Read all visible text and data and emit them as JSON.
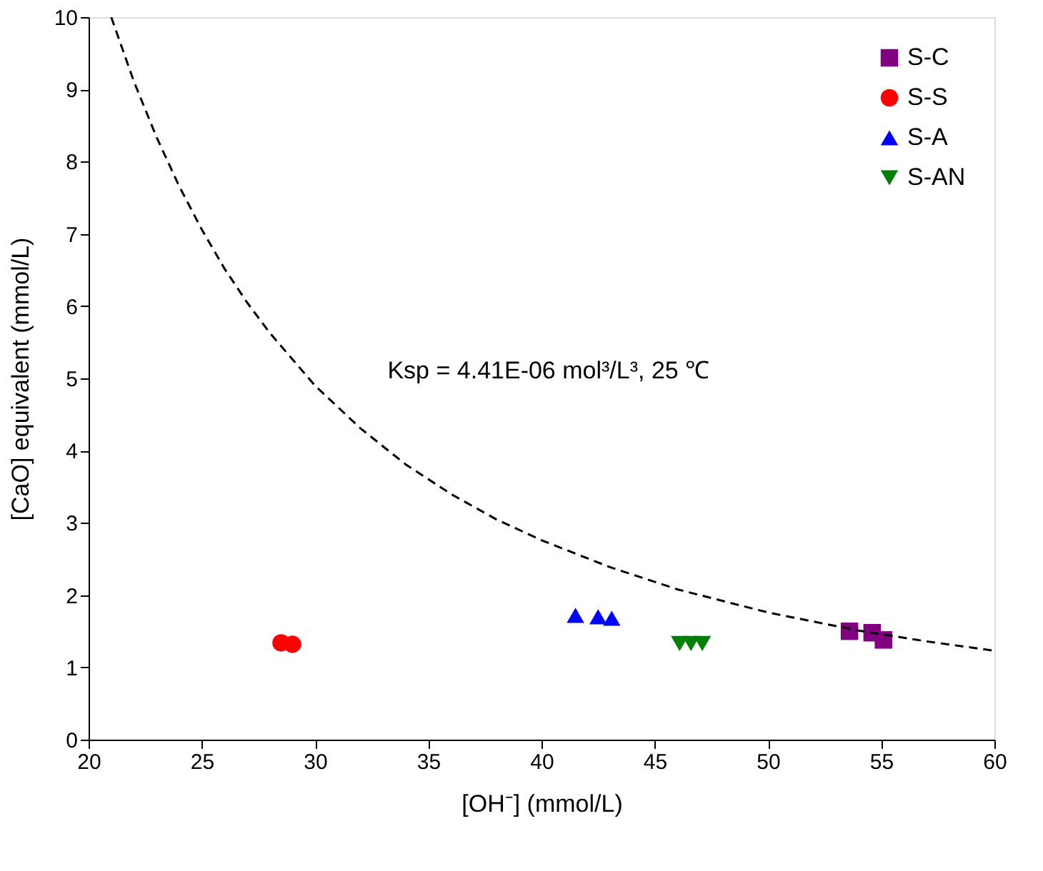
{
  "chart_data": {
    "type": "scatter",
    "xlabel": "[OH⁻] (mmol/L)",
    "ylabel": "[CaO] equivalent (mmol/L)",
    "xlim": [
      20,
      60
    ],
    "xticks": [
      20,
      25,
      30,
      35,
      40,
      45,
      50,
      55,
      60
    ],
    "ylim": [
      0,
      10
    ],
    "yticks": [
      0,
      1,
      2,
      3,
      4,
      5,
      6,
      7,
      8,
      9,
      10
    ],
    "grid": false,
    "legend": "top right",
    "annotations": [
      "Ksp = 4.41E-06 mol³/L³, 25 ℃"
    ],
    "series": [
      {
        "name": "S-C",
        "color": "#800080",
        "marker": "square",
        "x": [
          53.6,
          54.6,
          55.1
        ],
        "values": [
          1.5,
          1.48,
          1.38
        ]
      },
      {
        "name": "S-S",
        "color": "#ff0000",
        "marker": "circle",
        "x": [
          28.5,
          29.0
        ],
        "values": [
          1.34,
          1.32
        ]
      },
      {
        "name": "S-A",
        "color": "#0000ff",
        "marker": "triangle",
        "x": [
          41.5,
          42.5,
          43.1
        ],
        "values": [
          1.72,
          1.7,
          1.68
        ]
      },
      {
        "name": "S-AN",
        "color": "#008000",
        "marker": "triangle-down",
        "x": [
          46.1,
          46.6,
          47.1
        ],
        "values": [
          1.33,
          1.33,
          1.33
        ]
      },
      {
        "type": "line",
        "color": "#000000",
        "line_style": "dashed",
        "marker": "none",
        "x": [
          21,
          22,
          23,
          24,
          25,
          26,
          27,
          28,
          30,
          32,
          34,
          36,
          38,
          40,
          43,
          46,
          50,
          54,
          57,
          60
        ],
        "values": [
          10.0,
          9.11,
          8.34,
          7.66,
          7.06,
          6.52,
          6.05,
          5.63,
          4.9,
          4.31,
          3.81,
          3.4,
          3.05,
          2.76,
          2.39,
          2.08,
          1.76,
          1.51,
          1.36,
          1.23
        ]
      }
    ]
  }
}
